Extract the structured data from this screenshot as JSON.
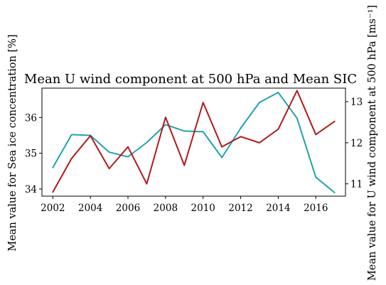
{
  "chart_data": {
    "type": "line",
    "title": "Mean U wind component at 500 hPa and Mean SIC",
    "xlabel": "",
    "ylabel_left": "Mean value for Sea ice concentration [%]",
    "ylabel_right": "Mean value for U wind component at 500 hPa [ms⁻¹]",
    "x": [
      2002,
      2003,
      2004,
      2005,
      2006,
      2007,
      2008,
      2009,
      2010,
      2011,
      2012,
      2013,
      2014,
      2015,
      2016,
      2017
    ],
    "x_ticks": [
      "2002",
      "2004",
      "2006",
      "2008",
      "2010",
      "2012",
      "2014",
      "2016"
    ],
    "ylim_left": [
      33.8,
      36.82
    ],
    "ylim_right": [
      10.7,
      13.33
    ],
    "y_ticks_left": [
      "34",
      "35",
      "36"
    ],
    "y_ticks_right": [
      "11",
      "12",
      "13"
    ],
    "grid": false,
    "series": [
      {
        "axis": "left",
        "color": "#20a3ab",
        "values": [
          34.6,
          35.52,
          35.5,
          35.03,
          34.9,
          35.3,
          35.8,
          35.62,
          35.6,
          34.88,
          35.7,
          36.42,
          36.7,
          35.98,
          34.33,
          33.9
        ]
      },
      {
        "axis": "right",
        "color": "#b3191a",
        "values": [
          10.8,
          11.62,
          12.17,
          11.37,
          11.9,
          11.0,
          12.62,
          11.45,
          12.98,
          11.9,
          12.15,
          12.0,
          12.33,
          13.27,
          12.2,
          12.52
        ]
      }
    ]
  }
}
